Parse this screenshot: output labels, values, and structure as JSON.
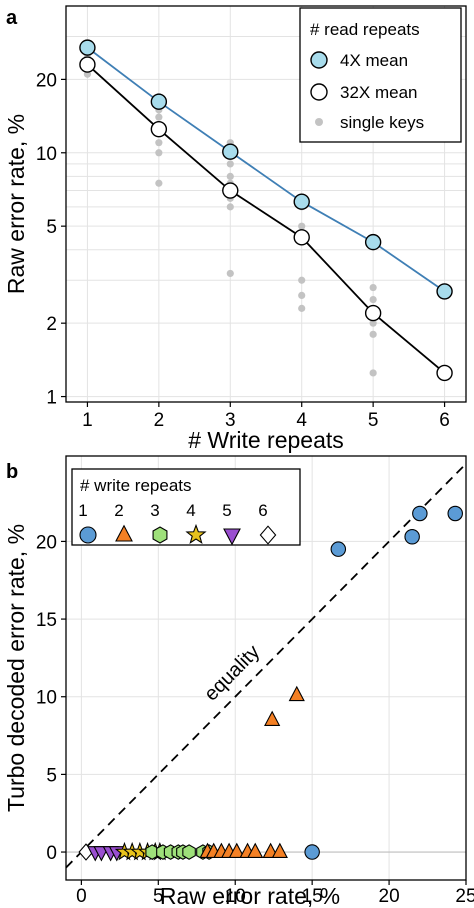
{
  "chart_data": [
    {
      "panel": "a",
      "type": "scatter",
      "xlabel": "# Write repeats",
      "ylabel": "Raw error rate, %",
      "yscale": "log",
      "xlim": [
        0.7,
        6.3
      ],
      "ylim": [
        0.95,
        40
      ],
      "xticks": [
        1,
        2,
        3,
        4,
        5,
        6
      ],
      "yticks": [
        1,
        2,
        5,
        10,
        20
      ],
      "grid": true,
      "legend": {
        "title": "# read repeats",
        "placement": "top-right",
        "entries": [
          "4X mean",
          "32X mean",
          "single keys"
        ]
      },
      "series": [
        {
          "name": "4X mean",
          "color": "#a8dcec",
          "line_color": "#3f7fb5",
          "marker": "circle",
          "x": [
            1,
            2,
            3,
            4,
            5,
            6
          ],
          "y": [
            27,
            16.2,
            10.1,
            6.3,
            4.3,
            2.7
          ]
        },
        {
          "name": "32X mean",
          "color": "#ffffff",
          "line_color": "#000000",
          "marker": "circle",
          "x": [
            1,
            2,
            3,
            4,
            5,
            6
          ],
          "y": [
            23,
            12.5,
            7.0,
            4.5,
            2.2,
            1.25
          ]
        },
        {
          "name": "single keys",
          "color": "#c3c3c3",
          "marker": "dot",
          "x": [
            1,
            1,
            1,
            1,
            1,
            1,
            2,
            2,
            2,
            2,
            2,
            2,
            2,
            2,
            2,
            3,
            3,
            3,
            3,
            3,
            3,
            3,
            3,
            3,
            4,
            4,
            4,
            4,
            4,
            4,
            5,
            5,
            5,
            5,
            5,
            6
          ],
          "y": [
            21,
            22,
            23,
            24,
            25,
            26,
            7.5,
            10,
            11,
            12,
            13,
            14,
            15,
            16,
            17,
            3.2,
            6,
            6.5,
            7,
            7.5,
            8,
            9,
            10,
            11,
            2.3,
            2.6,
            3,
            5,
            6,
            6.5,
            1.25,
            1.8,
            2,
            2.5,
            2.8,
            2.7
          ]
        }
      ]
    },
    {
      "panel": "b",
      "type": "scatter",
      "xlabel": "Raw error rate, %",
      "ylabel": "Turbo decoded error rate, %",
      "xlim": [
        -1,
        25
      ],
      "ylim": [
        -1.8,
        25.5
      ],
      "xticks": [
        0,
        5,
        10,
        15,
        20,
        25
      ],
      "yticks": [
        0,
        5,
        10,
        15,
        20
      ],
      "grid": true,
      "annotation": "equality",
      "legend": {
        "title": "# write repeats",
        "placement": "top-left",
        "entries": [
          "1",
          "2",
          "3",
          "4",
          "5",
          "6"
        ]
      },
      "series": [
        {
          "name": "1",
          "marker": "circle",
          "color": "#5b9bd5",
          "x": [
            15,
            16.7,
            21.5,
            22,
            24.3
          ],
          "y": [
            0,
            19.5,
            20.3,
            21.8,
            21.8
          ]
        },
        {
          "name": "2",
          "marker": "triangle-up",
          "color": "#f48024",
          "x": [
            8.2,
            8.6,
            9.1,
            9.6,
            10.1,
            10.8,
            11.3,
            12.3,
            12.9,
            12.4,
            14.0
          ],
          "y": [
            0,
            0,
            0,
            0,
            0,
            0,
            0,
            0,
            0,
            8.5,
            10.1
          ]
        },
        {
          "name": "3",
          "marker": "hexagon",
          "color": "#9ee07a",
          "x": [
            4.6,
            5.3,
            5.8,
            6.3,
            6.6,
            7.0,
            7.9,
            8.3
          ],
          "y": [
            0,
            0,
            0,
            0,
            0,
            0,
            0,
            0
          ]
        },
        {
          "name": "4",
          "marker": "star",
          "color": "#e7c21c",
          "x": [
            2.8,
            3.3,
            3.8,
            4.3,
            4.8,
            5.1
          ],
          "y": [
            0,
            0,
            0,
            0,
            0,
            0
          ]
        },
        {
          "name": "5",
          "marker": "triangle-down",
          "color": "#9a4fd0",
          "x": [
            0.9,
            1.3,
            1.9,
            2.3
          ],
          "y": [
            0,
            0,
            0,
            0
          ]
        },
        {
          "name": "6",
          "marker": "diamond",
          "color": "#ffffff",
          "x": [
            0.3
          ],
          "y": [
            0
          ]
        }
      ]
    }
  ]
}
